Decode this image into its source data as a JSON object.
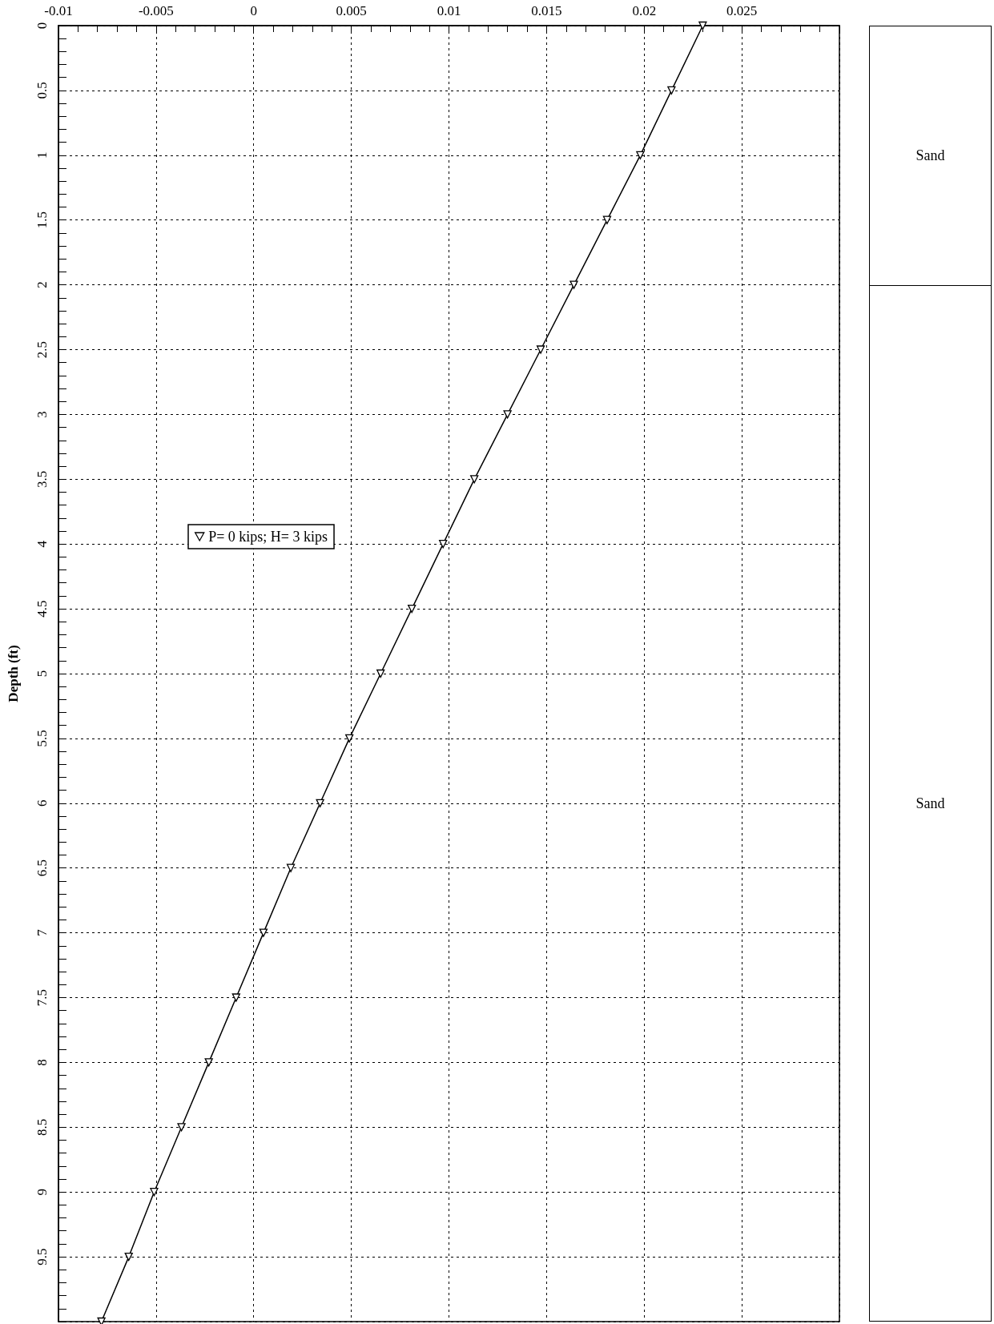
{
  "chart_data": [
    {
      "type": "line",
      "ylabel": "Depth (ft)",
      "xlim": [
        -0.01,
        0.03
      ],
      "xticks": [
        -0.01,
        -0.005,
        0,
        0.005,
        0.01,
        0.015,
        0.02,
        0.025
      ],
      "ylim": [
        10,
        0
      ],
      "yticks": [
        0,
        0.5,
        1,
        1.5,
        2,
        2.5,
        3,
        3.5,
        4,
        4.5,
        5,
        5.5,
        6,
        6.5,
        7,
        7.5,
        8,
        8.5,
        9,
        9.5
      ],
      "grid": true,
      "legend": "left",
      "marker": "triangle",
      "line_style": "solid",
      "series": [
        {
          "name": "P= 0 kips; H= 3 kips",
          "color": "#000000",
          "x": [
            0.023,
            0.0214,
            0.0198,
            0.0181,
            0.0164,
            0.0147,
            0.013,
            0.0113,
            0.0097,
            0.0081,
            0.0065,
            0.0049,
            0.0034,
            0.0019,
            0.0005,
            -0.0009,
            -0.0023,
            -0.0037,
            -0.0051,
            -0.0064,
            -0.0078
          ],
          "values": [
            0,
            0.5,
            1,
            1.5,
            2,
            2.5,
            3,
            3.5,
            4,
            4.5,
            5,
            5.5,
            6,
            6.5,
            7,
            7.5,
            8,
            8.5,
            9,
            9.5,
            10
          ]
        }
      ]
    },
    {
      "type": "other",
      "annotations": [
        "Sand",
        "Sand"
      ]
    }
  ]
}
